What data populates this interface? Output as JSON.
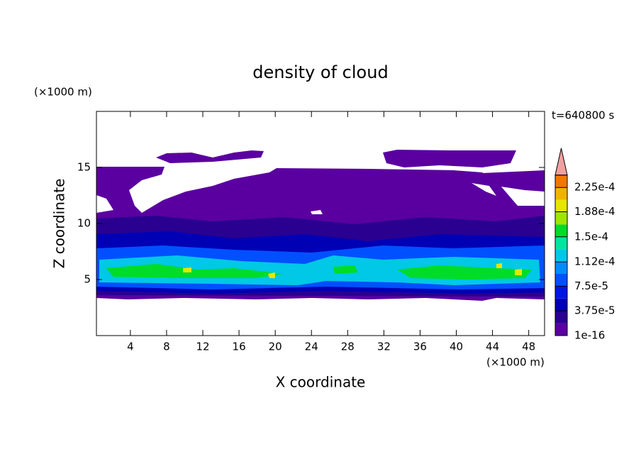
{
  "chart_data": {
    "type": "contour",
    "title": "density of cloud",
    "xlabel": "X coordinate",
    "ylabel": "Z coordinate",
    "xunit": "(×1000 m)",
    "yunit": "(×1000 m)",
    "annotation": "t=640800 s",
    "xlim": [
      0.25,
      49.75
    ],
    "xticks": [
      4,
      8,
      12,
      16,
      20,
      24,
      28,
      32,
      36,
      40,
      44,
      48
    ],
    "ylim": [
      0,
      20
    ],
    "yticks": [
      5,
      10,
      15
    ],
    "colorbar": {
      "clim": [
        1e-16,
        0.00024375
      ],
      "ticks": [
        1e-16,
        {
          "value": 3.75e-05,
          "label": "3.75e-5"
        },
        {
          "value": 7.5e-05,
          "label": "7.5e-5"
        },
        {
          "value": 0.000112,
          "label": "1.12e-4"
        },
        {
          "value": 0.00015,
          "label": "1.5e-4"
        },
        {
          "value": 0.000188,
          "label": "1.88e-4"
        },
        {
          "value": 0.000225,
          "label": "2.25e-4"
        }
      ],
      "colors": [
        "#5a00a0",
        "#2a0090",
        "#0000b4",
        "#0014e6",
        "#0050ff",
        "#008cff",
        "#00c8e6",
        "#00e6a0",
        "#00dc28",
        "#a0e600",
        "#e6e600",
        "#f0b400",
        "#f07800"
      ],
      "extend_color": "#f0a0a0"
    }
  }
}
